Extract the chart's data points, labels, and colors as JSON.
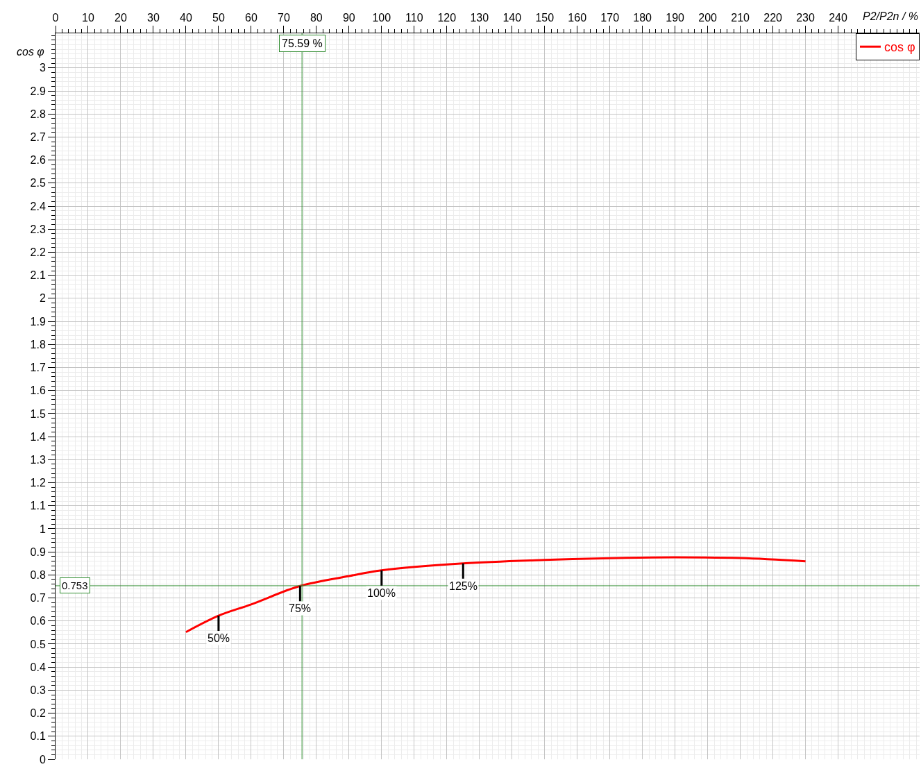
{
  "chart_data": {
    "type": "line",
    "xlabel": "P2/P2n / %",
    "ylabel": "cos φ",
    "x": [
      40,
      50,
      60,
      75,
      90,
      100,
      125,
      150,
      175,
      190,
      210,
      230
    ],
    "series": [
      {
        "name": "cos φ",
        "color": "#ff0000",
        "values": [
          0.552,
          0.623,
          0.672,
          0.752,
          0.795,
          0.82,
          0.85,
          0.865,
          0.874,
          0.876,
          0.873,
          0.859
        ]
      }
    ],
    "xlim": [
      0,
      265
    ],
    "xticks": [
      0,
      10,
      20,
      30,
      40,
      50,
      60,
      70,
      80,
      90,
      100,
      110,
      120,
      130,
      140,
      150,
      160,
      170,
      180,
      190,
      200,
      210,
      220,
      230,
      240
    ],
    "ylim": [
      0,
      3.15
    ],
    "yticks": [
      0,
      0.1,
      0.2,
      0.3,
      0.4,
      0.5,
      0.6,
      0.7,
      0.8,
      0.9,
      1,
      1.1,
      1.2,
      1.3,
      1.4,
      1.5,
      1.6,
      1.7,
      1.8,
      1.9,
      2,
      2.1,
      2.2,
      2.3,
      2.4,
      2.5,
      2.6,
      2.7,
      2.8,
      2.9,
      3
    ],
    "ref_lines": [
      {
        "axis": "x",
        "value": 75.59,
        "label": "75.59 %",
        "color": "#2e8b2e"
      },
      {
        "axis": "y",
        "value": 0.753,
        "label": "0.753",
        "color": "#2e8b2e"
      }
    ],
    "annotations": [
      {
        "text": "50%",
        "x": 50,
        "y": 0.623
      },
      {
        "text": "75%",
        "x": 75,
        "y": 0.752
      },
      {
        "text": "100%",
        "x": 100,
        "y": 0.82
      },
      {
        "text": "125%",
        "x": 125,
        "y": 0.85
      }
    ],
    "grid": true,
    "legend": "top right",
    "marker": "none",
    "line_style": "solid"
  }
}
